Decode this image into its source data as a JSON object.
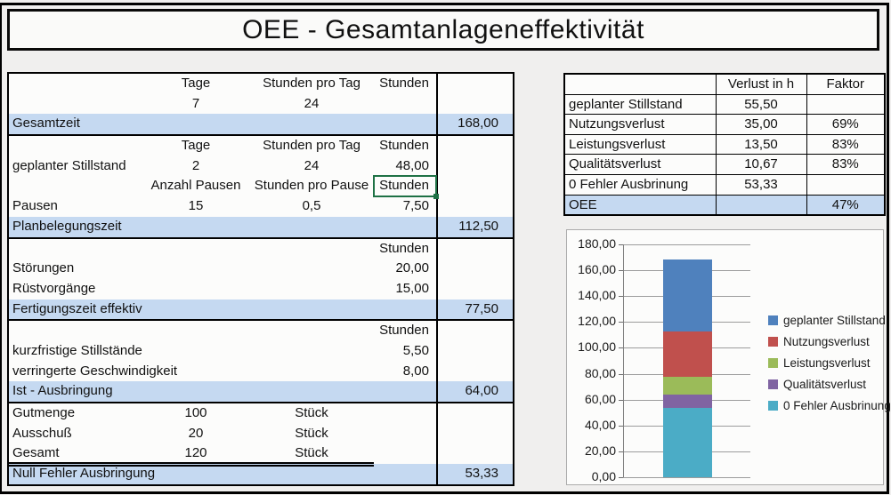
{
  "title": "OEE - Gesamtanlageneffektivität",
  "colors": {
    "highlight_row": "#c5d9f1",
    "selection_border": "#1e7145",
    "table_border": "#000000"
  },
  "left_table": {
    "rows": [
      {
        "a": "",
        "b": "Tage",
        "c": "Stunden pro Tag",
        "d": "Stunden",
        "e": ""
      },
      {
        "a": "",
        "b": "7",
        "c": "24",
        "d": "",
        "e": ""
      },
      {
        "a": "Gesamtzeit",
        "b": "",
        "c": "",
        "d": "",
        "e": "168,00"
      },
      {
        "a": "",
        "b": "Tage",
        "c": "Stunden pro Tag",
        "d": "Stunden",
        "e": ""
      },
      {
        "a": "geplanter Stillstand",
        "b": "2",
        "c": "24",
        "d": "48,00",
        "e": ""
      },
      {
        "a": "",
        "b": "Anzahl Pausen",
        "c": "Stunden pro Pause",
        "d": "Stunden",
        "e": ""
      },
      {
        "a": "Pausen",
        "b": "15",
        "c": "0,5",
        "d": "7,50",
        "e": ""
      },
      {
        "a": "Planbelegungszeit",
        "b": "",
        "c": "",
        "d": "",
        "e": "112,50"
      },
      {
        "a": "",
        "b": "",
        "c": "",
        "d": "Stunden",
        "e": ""
      },
      {
        "a": "Störungen",
        "b": "",
        "c": "",
        "d": "20,00",
        "e": ""
      },
      {
        "a": "Rüstvorgänge",
        "b": "",
        "c": "",
        "d": "15,00",
        "e": ""
      },
      {
        "a": "Fertigungszeit effektiv",
        "b": "",
        "c": "",
        "d": "",
        "e": "77,50"
      },
      {
        "a": "",
        "b": "",
        "c": "",
        "d": "Stunden",
        "e": ""
      },
      {
        "a": "kurzfristige Stillstände",
        "b": "",
        "c": "",
        "d": "5,50",
        "e": ""
      },
      {
        "a": "verringerte Geschwindigkeit",
        "b": "",
        "c": "",
        "d": "8,00",
        "e": ""
      },
      {
        "a": "Ist - Ausbringung",
        "b": "",
        "c": "",
        "d": "",
        "e": "64,00"
      },
      {
        "a": "Gutmenge",
        "b": "100",
        "c": "Stück",
        "d": "",
        "e": ""
      },
      {
        "a": "Ausschuß",
        "b": "20",
        "c": "Stück",
        "d": "",
        "e": ""
      },
      {
        "a": "Gesamt",
        "b": "120",
        "c": "Stück",
        "d": "",
        "e": ""
      },
      {
        "a": "Null Fehler Ausbringung",
        "b": "",
        "c": "",
        "d": "",
        "e": "53,33"
      }
    ]
  },
  "right_table": {
    "header": {
      "label": "",
      "verlust": "Verlust in h",
      "faktor": "Faktor"
    },
    "rows": [
      {
        "label": "geplanter Stillstand",
        "verlust": "55,50",
        "faktor": ""
      },
      {
        "label": "Nutzungsverlust",
        "verlust": "35,00",
        "faktor": "69%"
      },
      {
        "label": "Leistungsverlust",
        "verlust": "13,50",
        "faktor": "83%"
      },
      {
        "label": "Qualitätsverlust",
        "verlust": "10,67",
        "faktor": "83%"
      },
      {
        "label": "0 Fehler Ausbrinung",
        "verlust": "53,33",
        "faktor": ""
      },
      {
        "label": "OEE",
        "verlust": "",
        "faktor": "47%"
      }
    ]
  },
  "chart_data": {
    "type": "bar",
    "subtype": "stacked-column",
    "categories": [
      ""
    ],
    "series": [
      {
        "name": "geplanter Stillstand",
        "values": [
          55.5
        ],
        "color": "#4f81bd"
      },
      {
        "name": "Nutzungsverlust",
        "values": [
          35.0
        ],
        "color": "#c0504d"
      },
      {
        "name": "Leistungsverlust",
        "values": [
          13.5
        ],
        "color": "#9bbb59"
      },
      {
        "name": "Qualitätsverlust",
        "values": [
          10.67
        ],
        "color": "#8064a2"
      },
      {
        "name": "0 Fehler Ausbrinung",
        "values": [
          53.33
        ],
        "color": "#4bacc6"
      }
    ],
    "stack_total": 168.0,
    "title": "",
    "xlabel": "",
    "ylabel": "",
    "ylim": [
      0,
      180
    ],
    "ytick_step": 20,
    "ytick_labels": [
      "0,00",
      "20,00",
      "40,00",
      "60,00",
      "80,00",
      "100,00",
      "120,00",
      "140,00",
      "160,00",
      "180,00"
    ],
    "grid": true,
    "legend_position": "right"
  }
}
